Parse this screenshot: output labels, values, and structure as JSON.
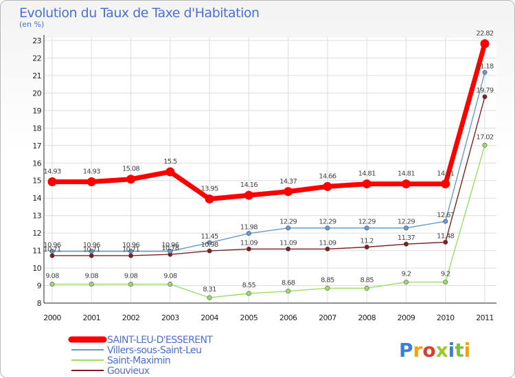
{
  "chart_data": {
    "type": "line",
    "title": "Evolution du Taux de Taxe d'Habitation",
    "subtitle": "(en %)",
    "x": [
      "2000",
      "2001",
      "2002",
      "2003",
      "2004",
      "2005",
      "2006",
      "2007",
      "2008",
      "2009",
      "2010",
      "2011"
    ],
    "ylim": [
      8,
      23
    ],
    "yticks": [
      8,
      9,
      10,
      11,
      12,
      13,
      14,
      15,
      16,
      17,
      18,
      19,
      20,
      21,
      22,
      23
    ],
    "grid": true,
    "legend_position": "bottom-left",
    "series": [
      {
        "name": "SAINT-LEU-D'ESSERENT",
        "color": "#ff0000",
        "values": [
          14.93,
          14.93,
          15.08,
          15.5,
          13.95,
          14.16,
          14.37,
          14.66,
          14.81,
          14.81,
          14.81,
          22.82
        ],
        "labels": [
          "14.93",
          "14.93",
          "15.08",
          "15.5",
          "13.95",
          "14.16",
          "14.37",
          "14.66",
          "14.81",
          "14.81",
          "14.81",
          "22.82"
        ]
      },
      {
        "name": "Villers-sous-Saint-Leu",
        "color": "#6699cc",
        "values": [
          10.96,
          10.96,
          10.96,
          10.96,
          11.45,
          11.98,
          12.29,
          12.29,
          12.29,
          12.29,
          12.67,
          21.18
        ],
        "labels": [
          "10.96",
          "10.96",
          "10.96",
          "10.96",
          "11.45",
          "11.98",
          "12.29",
          "12.29",
          "12.29",
          "12.29",
          "12.67",
          "21.18"
        ]
      },
      {
        "name": "Saint-Maximin",
        "color": "#99dd66",
        "values": [
          9.08,
          9.08,
          9.08,
          9.08,
          8.31,
          8.55,
          8.68,
          8.85,
          8.85,
          9.2,
          9.2,
          17.02
        ],
        "labels": [
          "9.08",
          "9.08",
          "9.08",
          "9.08",
          "8.31",
          "8.55",
          "8.68",
          "8.85",
          "8.85",
          "9.2",
          "9.2",
          "17.02"
        ]
      },
      {
        "name": "Gouvieux",
        "color": "#7b2020",
        "values": [
          10.71,
          10.71,
          10.71,
          10.78,
          10.98,
          11.09,
          11.09,
          11.09,
          11.2,
          11.37,
          11.48,
          19.79
        ],
        "labels": [
          "10.71",
          "10.71",
          "10.71",
          "10.78",
          "10.98",
          "11.09",
          "11.09",
          "11.09",
          "11.2",
          "11.37",
          "11.48",
          "19.79"
        ]
      }
    ]
  },
  "brand": {
    "text": "Proxiti",
    "colors": [
      "#3b7fd6",
      "#f0a020",
      "#d8402e",
      "#9ac92c",
      "#3b7fd6",
      "#7cc242",
      "#f0a020"
    ]
  }
}
